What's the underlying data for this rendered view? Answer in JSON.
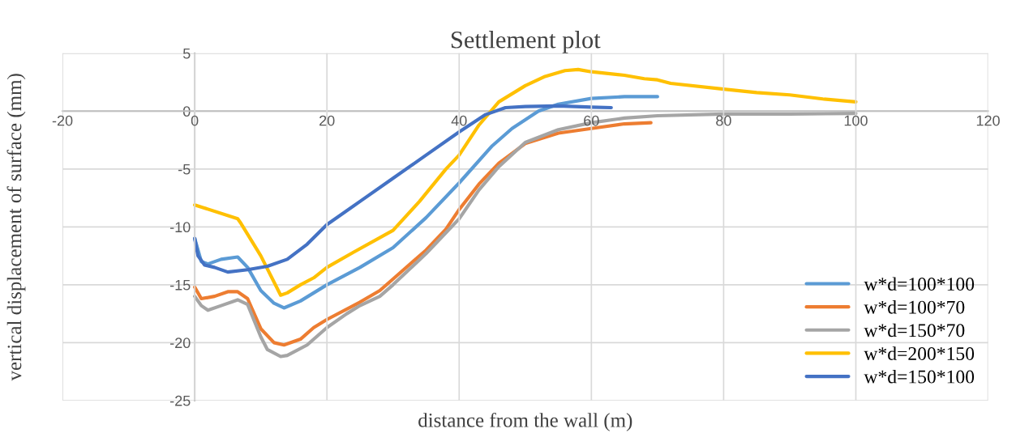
{
  "chart_data": {
    "type": "line",
    "title": "Settlement plot",
    "xlabel": "distance from the wall (m)",
    "ylabel": "vertical displacement of surface (mm)",
    "xlim": [
      -20,
      120
    ],
    "xticks": [
      -20,
      0,
      20,
      40,
      60,
      80,
      100,
      120
    ],
    "ylim": [
      -25,
      5
    ],
    "yticks": [
      -25,
      -20,
      -15,
      -10,
      -5,
      0,
      5
    ],
    "grid": true,
    "legend": "bottom right",
    "marker": "none",
    "line_style": "solid",
    "series": [
      {
        "name": "w*d=100*100",
        "color": "#5b9bd5",
        "x": [
          0,
          1,
          2,
          4,
          6.5,
          8,
          10,
          12,
          13.5,
          16,
          20,
          25,
          30,
          35,
          40,
          45,
          48,
          52,
          55,
          60,
          65,
          70
        ],
        "values": [
          -11,
          -13,
          -13.2,
          -12.8,
          -12.6,
          -13.5,
          -15.5,
          -16.6,
          -17,
          -16.4,
          -15,
          -13.5,
          -11.8,
          -9.2,
          -6.2,
          -3,
          -1.5,
          0,
          0.6,
          1.1,
          1.25,
          1.25
        ]
      },
      {
        "name": "w*d=100*70",
        "color": "#ed7d31",
        "x": [
          0,
          1,
          3,
          5,
          6.5,
          8,
          10,
          12,
          13.5,
          16,
          18,
          20,
          25,
          28,
          30,
          35,
          38,
          40,
          43,
          46,
          50,
          55,
          60,
          65,
          69
        ],
        "values": [
          -15.2,
          -16.2,
          -16,
          -15.6,
          -15.6,
          -16.2,
          -18.8,
          -20,
          -20.2,
          -19.7,
          -18.7,
          -18,
          -16.5,
          -15.5,
          -14.5,
          -12,
          -10.2,
          -8.5,
          -6.3,
          -4.5,
          -2.8,
          -1.9,
          -1.5,
          -1.1,
          -1
        ]
      },
      {
        "name": "w*d=150*70",
        "color": "#a5a5a5",
        "x": [
          0,
          1,
          2,
          4,
          6.5,
          8,
          10,
          11,
          13,
          14,
          17,
          20,
          23,
          25,
          28,
          30,
          35,
          38,
          40,
          43,
          46,
          50,
          55,
          60,
          65,
          70,
          80,
          90,
          100
        ],
        "values": [
          -16,
          -16.8,
          -17.2,
          -16.8,
          -16.3,
          -16.7,
          -19.5,
          -20.6,
          -21.2,
          -21.1,
          -20.2,
          -18.7,
          -17.5,
          -16.8,
          -16,
          -15,
          -12.3,
          -10.5,
          -9.3,
          -6.8,
          -4.8,
          -2.7,
          -1.6,
          -1,
          -0.6,
          -0.4,
          -0.25,
          -0.25,
          -0.2
        ]
      },
      {
        "name": "w*d=200*150",
        "color": "#ffc000",
        "x": [
          0,
          6.5,
          7,
          10,
          13,
          14,
          16,
          18,
          20,
          24,
          30,
          34,
          38,
          40,
          43,
          46,
          50,
          53,
          56,
          58,
          60,
          65,
          68,
          70,
          72,
          80,
          85,
          90,
          95,
          100
        ],
        "values": [
          -8.1,
          -9.3,
          -9.7,
          -12.5,
          -15.9,
          -15.7,
          -15,
          -14.4,
          -13.5,
          -12.2,
          -10.3,
          -7.8,
          -5,
          -3.8,
          -1.2,
          0.8,
          2.2,
          3,
          3.5,
          3.6,
          3.4,
          3.1,
          2.8,
          2.7,
          2.4,
          1.9,
          1.6,
          1.4,
          1.05,
          0.8
        ]
      },
      {
        "name": "w*d=150*100",
        "color": "#4472c4",
        "x": [
          0,
          0.5,
          1.5,
          3,
          5,
          8,
          11,
          14,
          17,
          20,
          25,
          30,
          35,
          40,
          44,
          47,
          50,
          55,
          60,
          63
        ],
        "values": [
          -11,
          -12.5,
          -13.3,
          -13.5,
          -13.9,
          -13.7,
          -13.4,
          -12.8,
          -11.5,
          -9.8,
          -7.8,
          -5.8,
          -3.8,
          -1.8,
          -0.3,
          0.3,
          0.4,
          0.45,
          0.35,
          0.3
        ]
      }
    ]
  }
}
